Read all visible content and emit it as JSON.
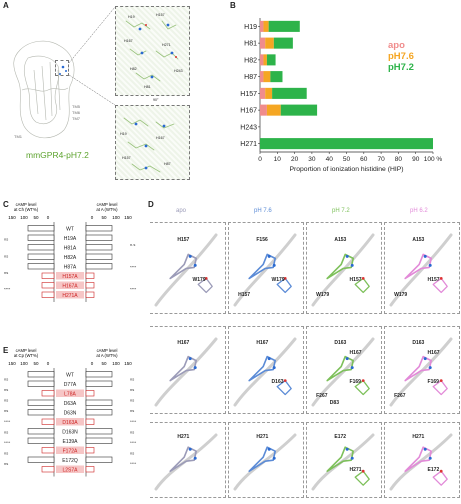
{
  "panels": {
    "A": {
      "letter": "A",
      "caption": "mmGPR4-pH7.2",
      "label_90": "90°",
      "top_labels": [
        "H19",
        "H157",
        "H167",
        "H271",
        "H243"
      ],
      "mid_labels": [
        "H82",
        "H81",
        "H86",
        "H87"
      ],
      "bot_labels": [
        "H19",
        "H167",
        "H157",
        "H87"
      ]
    },
    "B": {
      "letter": "B",
      "legend": [
        {
          "name": "apo",
          "color": "#f08c8c"
        },
        {
          "name": "pH7.6",
          "color": "#f5a623"
        },
        {
          "name": "pH7.2",
          "color": "#2db34a"
        }
      ]
    },
    "C": {
      "letter": "C",
      "left_header": [
        "cAMP level",
        "at Ch (WT%)"
      ],
      "right_header": [
        "cAMP level",
        "at A (WT%)"
      ],
      "axis": [
        "150",
        "100",
        "50",
        "0"
      ],
      "rows": [
        {
          "label": "WT",
          "highlight": false
        },
        {
          "label": "H19A",
          "highlight": false
        },
        {
          "label": "H81A",
          "highlight": false
        },
        {
          "label": "H82A",
          "highlight": false
        },
        {
          "label": "H87A",
          "highlight": false
        },
        {
          "label": "H157A",
          "highlight": true
        },
        {
          "label": "H167A",
          "highlight": true
        },
        {
          "label": "H271A",
          "highlight": true
        }
      ],
      "left_sig": [
        "ns",
        "ns",
        "ns",
        "****"
      ],
      "right_sig": [
        "n.s",
        "****",
        "****"
      ]
    },
    "D": {
      "letter": "D",
      "columns": [
        {
          "title": "apo",
          "color": "#9b9bb8"
        },
        {
          "title": "pH 7.6",
          "color": "#5b8bd6"
        },
        {
          "title": "pH 7.2",
          "color": "#7dc05a"
        },
        {
          "title": "pH 6.2",
          "color": "#e28ad8"
        }
      ],
      "row1": [
        [
          "H157",
          "W179"
        ],
        [
          "F156",
          "W179",
          "H157"
        ],
        [
          "A153",
          "H157",
          "W179"
        ],
        [
          "A153",
          "H157",
          "W179"
        ]
      ],
      "row2": [
        [
          "H167"
        ],
        [
          "H167",
          "D163"
        ],
        [
          "D163",
          "F169",
          "F267",
          "H167",
          "D83"
        ],
        [
          "D163",
          "F169",
          "F267",
          "H167"
        ]
      ],
      "row3": [
        [
          "H271"
        ],
        [
          "H271"
        ],
        [
          "E172",
          "H271"
        ],
        [
          "H271",
          "E172"
        ]
      ]
    },
    "E": {
      "letter": "E",
      "left_header": [
        "cAMP level",
        "at Cp (WT%)"
      ],
      "right_header": [
        "cAMP level",
        "at A (WT%)"
      ],
      "axis": [
        "150",
        "100",
        "50",
        "0"
      ],
      "rows": [
        {
          "label": "WT",
          "highlight": false
        },
        {
          "label": "D77A",
          "highlight": false
        },
        {
          "label": "L78A",
          "highlight": true
        },
        {
          "label": "D63A",
          "highlight": false
        },
        {
          "label": "D63N",
          "highlight": false
        },
        {
          "label": "D163A",
          "highlight": true
        },
        {
          "label": "D163N",
          "highlight": false
        },
        {
          "label": "E139A",
          "highlight": false
        },
        {
          "label": "F172A",
          "highlight": true
        },
        {
          "label": "E172Q",
          "highlight": false
        },
        {
          "label": "L2S7A",
          "highlight": true
        }
      ],
      "left_sig": [
        "ns",
        "ns",
        "ns",
        "ns",
        "****",
        "ns",
        "****",
        "ns",
        "ns"
      ],
      "right_sig": [
        "ns",
        "ns",
        "ns",
        "ns",
        "****",
        "ns",
        "****",
        "ns",
        "****"
      ]
    }
  },
  "chart_data": {
    "type": "bar",
    "orientation": "horizontal",
    "stacked": true,
    "categories": [
      "H19",
      "H81",
      "H82",
      "H87",
      "H157",
      "H167",
      "H243",
      "H271"
    ],
    "series": [
      {
        "name": "apo",
        "color": "#f08c8c",
        "values": [
          2,
          3,
          2,
          2,
          3,
          4,
          0,
          0
        ]
      },
      {
        "name": "pH7.6",
        "color": "#f5a623",
        "values": [
          3,
          5,
          2,
          4,
          4,
          8,
          0,
          0
        ]
      },
      {
        "name": "pH7.2",
        "color": "#2db34a",
        "values": [
          18,
          11,
          5,
          7,
          20,
          21,
          0,
          100
        ]
      }
    ],
    "xlabel": "Proportion of ionization histidine (HIP)",
    "xlim": [
      0,
      100
    ],
    "xticks": [
      "0",
      "10",
      "20",
      "30",
      "40",
      "50",
      "60",
      "70",
      "80",
      "90",
      "100 %"
    ],
    "legend_position": "top-right"
  }
}
